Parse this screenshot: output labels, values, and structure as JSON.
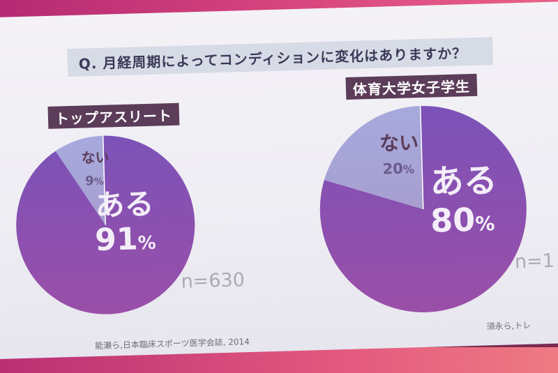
{
  "question": "Q.  月経周期によってコンディションに変化はありますか？",
  "chart_data": [
    {
      "type": "pie",
      "title": "トップアスリート",
      "slices": [
        {
          "label": "ある",
          "value": 91,
          "value_text": "91",
          "unit": "%"
        },
        {
          "label": "ない",
          "value": 9,
          "value_text": "9",
          "unit": "%"
        }
      ],
      "n": "n=630",
      "citation": "能瀬ら,日本臨床スポーツ医学会誌, 2014"
    },
    {
      "type": "pie",
      "title": "体育大学女子学生",
      "slices": [
        {
          "label": "ある",
          "value": 80,
          "value_text": "80",
          "unit": "%"
        },
        {
          "label": "ない",
          "value": 20,
          "value_text": "20",
          "unit": "%"
        }
      ],
      "n": "n=1",
      "citation": "須永ら,トレ"
    }
  ],
  "colors": {
    "slice_main": "#8b4fb3",
    "slice_minor": "#a9a6d8",
    "main_label": "#f4eef8",
    "minor_label": "#5b3c59",
    "slide_bg": "#f1f1f6",
    "accent_band": "#d33f7c"
  }
}
